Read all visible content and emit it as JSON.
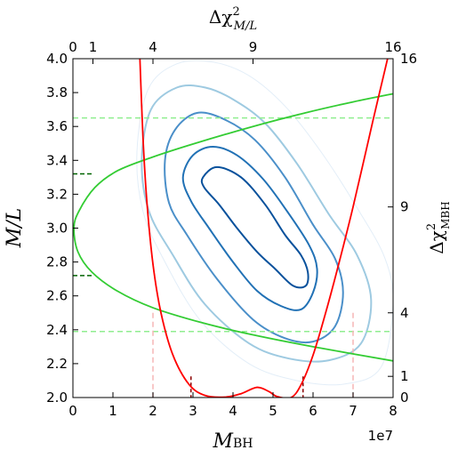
{
  "chart_data": {
    "type": "line",
    "title": "",
    "bottom_axis": {
      "label_main": "M",
      "label_sub": "BH",
      "range": [
        0,
        8
      ],
      "ticks": [
        0,
        1,
        2,
        3,
        4,
        5,
        6,
        7,
        8
      ],
      "tick_labels": [
        "0",
        "1",
        "2",
        "3",
        "4",
        "5",
        "6",
        "7",
        "8"
      ],
      "offset_label": "1e7"
    },
    "left_axis": {
      "label": "M/L",
      "range": [
        2.0,
        4.0
      ],
      "ticks": [
        2.0,
        2.2,
        2.4,
        2.6,
        2.8,
        3.0,
        3.2,
        3.4,
        3.6,
        3.8,
        4.0
      ],
      "tick_labels": [
        "2.0",
        "2.2",
        "2.4",
        "2.6",
        "2.8",
        "3.0",
        "3.2",
        "3.4",
        "3.6",
        "3.8",
        "4.0"
      ]
    },
    "top_axis": {
      "label_main": "Δχ",
      "label_sup": "2",
      "label_sub": "M/L",
      "range": [
        0,
        16
      ],
      "ticks": [
        0,
        1,
        4,
        9,
        16
      ],
      "tick_labels": [
        "0",
        "1",
        "4",
        "9",
        "16"
      ]
    },
    "right_axis": {
      "label_main": "Δχ",
      "label_sup": "2",
      "label_sub": "MBH",
      "range": [
        0,
        16
      ],
      "ticks": [
        0,
        1,
        4,
        9,
        16
      ],
      "tick_labels": [
        "0",
        "1",
        "4",
        "9",
        "16"
      ]
    },
    "contours": [
      {
        "level": 1,
        "color": "#08519c",
        "points": [
          [
            3.25,
            3.3
          ],
          [
            3.6,
            3.36
          ],
          [
            4.2,
            3.3
          ],
          [
            4.8,
            3.14
          ],
          [
            5.3,
            2.96
          ],
          [
            5.7,
            2.84
          ],
          [
            5.87,
            2.74
          ],
          [
            5.82,
            2.66
          ],
          [
            5.5,
            2.66
          ],
          [
            5.05,
            2.76
          ],
          [
            4.6,
            2.86
          ],
          [
            4.1,
            3.0
          ],
          [
            3.65,
            3.14
          ],
          [
            3.28,
            3.24
          ]
        ]
      },
      {
        "level": 2,
        "color": "#2171b5",
        "points": [
          [
            2.75,
            3.3
          ],
          [
            3.0,
            3.43
          ],
          [
            3.5,
            3.48
          ],
          [
            4.1,
            3.43
          ],
          [
            4.75,
            3.29
          ],
          [
            5.35,
            3.1
          ],
          [
            5.9,
            2.9
          ],
          [
            6.1,
            2.76
          ],
          [
            6.0,
            2.62
          ],
          [
            5.7,
            2.52
          ],
          [
            5.2,
            2.54
          ],
          [
            4.6,
            2.63
          ],
          [
            4.0,
            2.8
          ],
          [
            3.4,
            3.0
          ],
          [
            2.95,
            3.16
          ]
        ]
      },
      {
        "level": 3,
        "color": "#4a8fc9",
        "points": [
          [
            2.3,
            3.4
          ],
          [
            2.55,
            3.58
          ],
          [
            3.1,
            3.68
          ],
          [
            3.8,
            3.64
          ],
          [
            4.55,
            3.52
          ],
          [
            5.3,
            3.3
          ],
          [
            6.0,
            3.02
          ],
          [
            6.55,
            2.82
          ],
          [
            6.75,
            2.62
          ],
          [
            6.55,
            2.42
          ],
          [
            6.0,
            2.33
          ],
          [
            5.3,
            2.35
          ],
          [
            4.5,
            2.46
          ],
          [
            3.6,
            2.7
          ],
          [
            2.85,
            2.96
          ],
          [
            2.4,
            3.15
          ]
        ]
      },
      {
        "level": 4,
        "color": "#9ecae1",
        "points": [
          [
            1.72,
            3.4
          ],
          [
            1.95,
            3.7
          ],
          [
            2.6,
            3.83
          ],
          [
            3.3,
            3.83
          ],
          [
            4.0,
            3.76
          ],
          [
            4.8,
            3.62
          ],
          [
            5.6,
            3.38
          ],
          [
            6.4,
            3.08
          ],
          [
            7.1,
            2.84
          ],
          [
            7.45,
            2.58
          ],
          [
            7.2,
            2.32
          ],
          [
            6.4,
            2.22
          ],
          [
            5.4,
            2.23
          ],
          [
            4.4,
            2.32
          ],
          [
            3.3,
            2.55
          ],
          [
            2.5,
            2.84
          ],
          [
            1.9,
            3.1
          ]
        ]
      },
      {
        "level": 5,
        "color": "#e3eef8",
        "points": [
          [
            1.6,
            3.45
          ],
          [
            1.88,
            3.82
          ],
          [
            2.6,
            3.97
          ],
          [
            3.5,
            3.98
          ],
          [
            4.4,
            3.9
          ],
          [
            5.3,
            3.72
          ],
          [
            6.2,
            3.45
          ],
          [
            7.1,
            3.12
          ],
          [
            7.8,
            2.82
          ],
          [
            8.0,
            2.55
          ],
          [
            7.7,
            2.18
          ],
          [
            6.8,
            2.08
          ],
          [
            5.6,
            2.1
          ],
          [
            4.4,
            2.2
          ],
          [
            3.2,
            2.45
          ],
          [
            2.3,
            2.8
          ],
          [
            1.75,
            3.1
          ]
        ]
      }
    ],
    "mbh_chi2_curve": {
      "color": "#ff0000",
      "points": [
        [
          1.67,
          16.2
        ],
        [
          1.75,
          12.3
        ],
        [
          1.85,
          9.2
        ],
        [
          2.0,
          6.3
        ],
        [
          2.2,
          4.0
        ],
        [
          2.5,
          2.0
        ],
        [
          2.9,
          0.62
        ],
        [
          3.3,
          0.1
        ],
        [
          3.8,
          0.02
        ],
        [
          4.2,
          0.18
        ],
        [
          4.6,
          0.48
        ],
        [
          4.9,
          0.28
        ],
        [
          5.1,
          0.05
        ],
        [
          5.45,
          0.0
        ],
        [
          5.7,
          0.6
        ],
        [
          6.0,
          2.0
        ],
        [
          6.3,
          3.9
        ],
        [
          6.6,
          6.0
        ],
        [
          7.0,
          9.0
        ],
        [
          7.5,
          13.1
        ],
        [
          7.9,
          16.3
        ]
      ]
    },
    "ml_chi2_curve": {
      "color": "#33cc33",
      "points": [
        [
          16.3,
          3.8
        ],
        [
          14.0,
          3.745
        ],
        [
          11.6,
          3.68
        ],
        [
          9.0,
          3.6
        ],
        [
          6.1,
          3.5
        ],
        [
          4.0,
          3.42
        ],
        [
          2.25,
          3.34
        ],
        [
          1.1,
          3.24
        ],
        [
          0.3,
          3.1
        ],
        [
          0.05,
          3.0
        ],
        [
          0.25,
          2.86
        ],
        [
          0.95,
          2.74
        ],
        [
          2.2,
          2.63
        ],
        [
          4.0,
          2.53
        ],
        [
          6.5,
          2.44
        ],
        [
          9.0,
          2.37
        ],
        [
          12.0,
          2.3
        ],
        [
          16.3,
          2.21
        ]
      ]
    },
    "ml_interval_lines": {
      "color": "#90ee90",
      "values": [
        3.65,
        2.39
      ]
    },
    "ml_one_sigma_marks": {
      "color": "#006400",
      "values": [
        3.32,
        2.72
      ]
    },
    "mbh_interval_lines": {
      "color": "#f5b5b5",
      "values": [
        2.0,
        7.0
      ]
    },
    "mbh_one_sigma_marks": {
      "color": "#8b0000",
      "values": [
        2.95,
        5.75
      ]
    }
  }
}
